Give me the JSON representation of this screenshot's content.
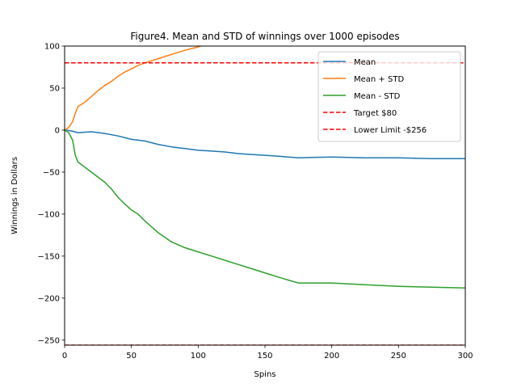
{
  "chart_data": {
    "type": "line",
    "title": "Figure4. Mean and STD of winnings over 1000 episodes",
    "xlabel": "Spins",
    "ylabel": "Winnings in Dollars",
    "xlim": [
      0,
      300
    ],
    "ylim": [
      -256,
      100
    ],
    "xticks": [
      0,
      50,
      100,
      150,
      200,
      250,
      300
    ],
    "yticks": [
      -250,
      -200,
      -150,
      -100,
      -50,
      0,
      50,
      100
    ],
    "xtick_labels": [
      "0",
      "50",
      "100",
      "150",
      "200",
      "250",
      "300"
    ],
    "ytick_labels": [
      "−250",
      "−200",
      "−150",
      "−100",
      "−50",
      "0",
      "50",
      "100"
    ],
    "grid": false,
    "legend_position": "top-right",
    "series": [
      {
        "name": "Mean",
        "color": "#1f77b4",
        "style": "solid",
        "x": [
          0,
          5,
          10,
          20,
          30,
          40,
          50,
          60,
          70,
          80,
          90,
          100,
          110,
          120,
          130,
          140,
          150,
          160,
          175,
          200,
          225,
          250,
          275,
          300
        ],
        "y": [
          0,
          -1,
          -3,
          -2,
          -4,
          -7,
          -11,
          -13,
          -17,
          -20,
          -22,
          -24,
          -25,
          -26,
          -28,
          -29,
          -30,
          -31,
          -33,
          -32,
          -33,
          -33,
          -34,
          -34
        ]
      },
      {
        "name": "Mean + STD",
        "color": "#ff7f0e",
        "style": "solid",
        "x": [
          0,
          3,
          6,
          8,
          10,
          15,
          20,
          25,
          30,
          35,
          40,
          45,
          50,
          55,
          60,
          70,
          80,
          90,
          100,
          102
        ],
        "y": [
          0,
          3,
          10,
          20,
          28,
          33,
          40,
          47,
          53,
          58,
          64,
          69,
          73,
          77,
          80,
          85,
          90,
          95,
          99,
          100
        ]
      },
      {
        "name": "Mean - STD",
        "color": "#2ca02c",
        "style": "solid",
        "x": [
          0,
          3,
          6,
          8,
          10,
          15,
          20,
          25,
          30,
          35,
          40,
          45,
          50,
          55,
          60,
          70,
          80,
          90,
          100,
          110,
          120,
          130,
          140,
          150,
          160,
          175,
          200,
          225,
          250,
          275,
          300
        ],
        "y": [
          0,
          -3,
          -12,
          -30,
          -38,
          -44,
          -50,
          -56,
          -62,
          -70,
          -80,
          -88,
          -95,
          -100,
          -108,
          -122,
          -133,
          -140,
          -145,
          -150,
          -155,
          -160,
          -165,
          -170,
          -175,
          -182,
          -182,
          -184,
          -186,
          -187,
          -188
        ]
      },
      {
        "name": "Target $80",
        "color": "#ff0000",
        "style": "dashed",
        "x": [
          0,
          300
        ],
        "y": [
          80,
          80
        ]
      },
      {
        "name": "Lower Limit -$256",
        "color": "#ff0000",
        "style": "dashed",
        "x": [
          0,
          300
        ],
        "y": [
          -256,
          -256
        ]
      }
    ]
  }
}
